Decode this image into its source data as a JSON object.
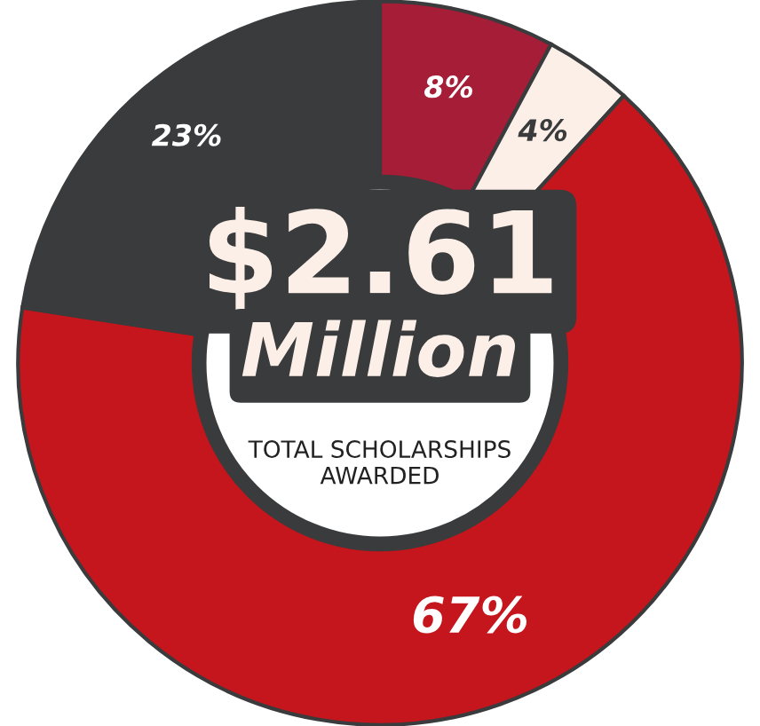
{
  "chart_data": {
    "type": "donut",
    "categories": [
      null,
      null,
      null,
      null
    ],
    "values": [
      8,
      4,
      67,
      23
    ],
    "value_labels": [
      "8%",
      "4%",
      "67%",
      "23%"
    ],
    "colors": [
      "#a51d36",
      "#fbefe8",
      "#c4161c",
      "#3a3b3d"
    ],
    "annotations": [
      "$2.61",
      "Million",
      "TOTAL SCHOLARSHIPS\nAWARDED"
    ]
  }
}
